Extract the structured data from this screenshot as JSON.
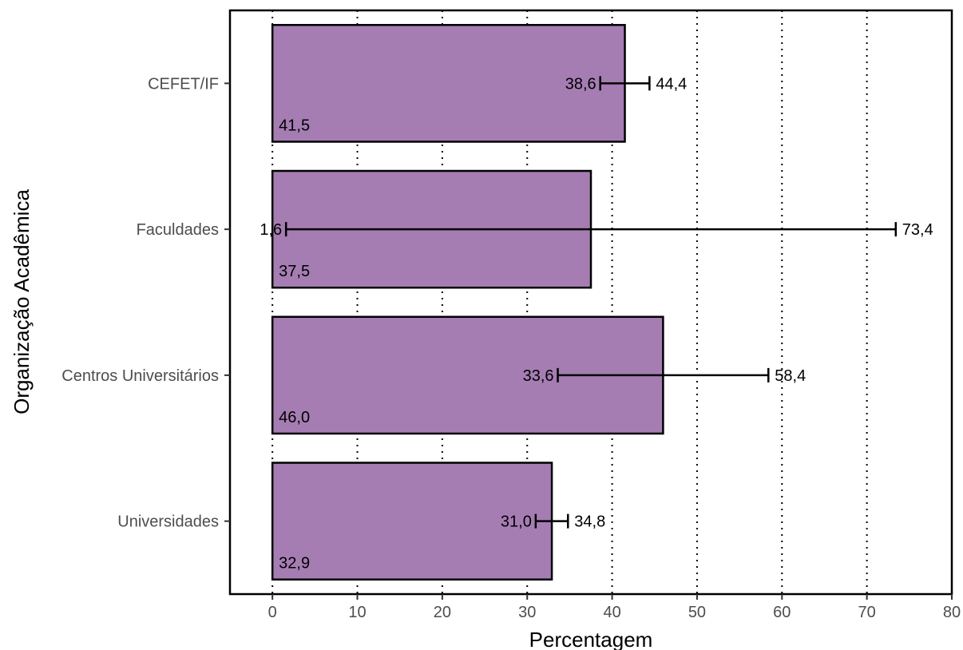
{
  "chart_data": {
    "type": "bar",
    "orientation": "horizontal",
    "categories": [
      "CEFET/IF",
      "Faculdades",
      "Centros Universitários",
      "Universidades"
    ],
    "values": [
      41.5,
      37.5,
      46.0,
      32.9
    ],
    "value_labels": [
      "41,5",
      "37,5",
      "46,0",
      "32,9"
    ],
    "ci_lower": [
      38.6,
      1.6,
      33.6,
      31.0
    ],
    "ci_lower_labels": [
      "38,6",
      "1,6",
      "33,6",
      "31,0"
    ],
    "ci_upper": [
      44.4,
      73.4,
      58.4,
      34.8
    ],
    "ci_upper_labels": [
      "44,4",
      "73,4",
      "58,4",
      "34,8"
    ],
    "xlabel": "Percentagem",
    "ylabel": "Organização Acadêmica",
    "xlim": [
      -5,
      80
    ],
    "xticks": [
      0,
      10,
      20,
      30,
      40,
      50,
      60,
      70,
      80
    ],
    "grid": "vertical-dotted",
    "bar_color": "#a57db3"
  }
}
